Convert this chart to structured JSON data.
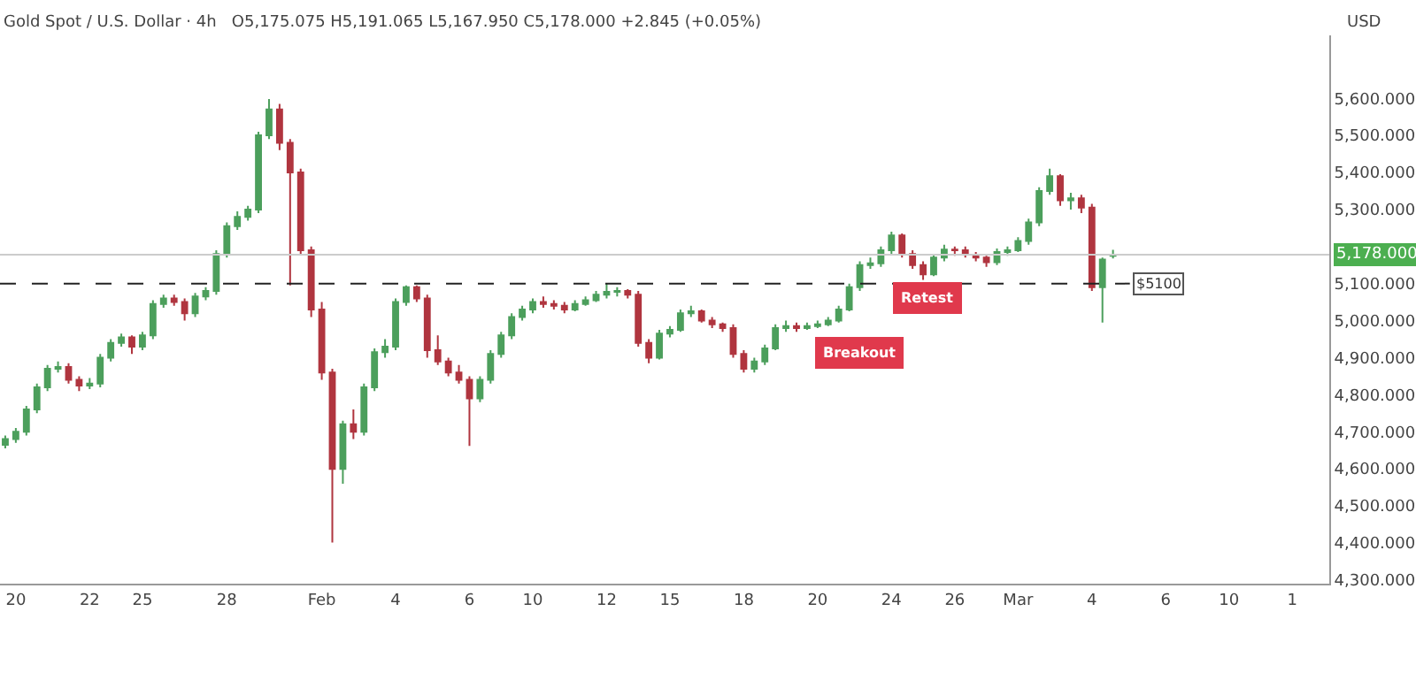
{
  "chart_data": {
    "type": "candlestick",
    "title": "Gold Spot / U.S. Dollar · 4h",
    "subtitle": "O5,175.075 H5,191.065 L5,167.950 C5,178.000 +2.845 (+0.05%)",
    "ylabel": "USD",
    "categories": [
      null,
      "20",
      null,
      null,
      null,
      null,
      null,
      null,
      "22",
      null,
      null,
      null,
      null,
      "25",
      null,
      null,
      null,
      null,
      null,
      null,
      null,
      "28",
      null,
      null,
      null,
      null,
      null,
      null,
      null,
      null,
      "Feb",
      null,
      null,
      null,
      null,
      null,
      null,
      "4",
      null,
      null,
      null,
      null,
      null,
      null,
      "6",
      null,
      null,
      null,
      null,
      null,
      "10",
      null,
      null,
      null,
      null,
      null,
      null,
      "12",
      null,
      null,
      null,
      null,
      null,
      "15",
      null,
      null,
      null,
      null,
      null,
      null,
      "18",
      null,
      null,
      null,
      null,
      null,
      null,
      "20",
      null,
      null,
      null,
      null,
      null,
      null,
      "24",
      null,
      null,
      null,
      null,
      null,
      "26",
      null,
      null,
      null,
      null,
      null,
      "Mar",
      null,
      null,
      null,
      null,
      null,
      null,
      "4",
      null,
      null,
      null,
      null,
      null,
      null,
      "6",
      null,
      null,
      null,
      null,
      null,
      "10",
      null,
      null,
      null,
      null,
      null,
      "1",
      null,
      null,
      null
    ],
    "ohlc": [
      [
        4665,
        4690,
        4655,
        4680
      ],
      [
        4680,
        4710,
        4670,
        4700
      ],
      [
        4700,
        4770,
        4690,
        4760
      ],
      [
        4760,
        4830,
        4750,
        4820
      ],
      [
        4820,
        4880,
        4810,
        4870
      ],
      [
        4870,
        4890,
        4860,
        4875
      ],
      [
        4875,
        4885,
        4830,
        4840
      ],
      [
        4840,
        4850,
        4810,
        4825
      ],
      [
        4825,
        4845,
        4815,
        4830
      ],
      [
        4830,
        4910,
        4820,
        4900
      ],
      [
        4900,
        4950,
        4890,
        4940
      ],
      [
        4940,
        4965,
        4930,
        4955
      ],
      [
        4955,
        4960,
        4910,
        4930
      ],
      [
        4930,
        4970,
        4920,
        4960
      ],
      [
        4960,
        5055,
        4950,
        5045
      ],
      [
        5045,
        5070,
        5035,
        5060
      ],
      [
        5060,
        5070,
        5040,
        5050
      ],
      [
        5050,
        5060,
        5000,
        5020
      ],
      [
        5020,
        5075,
        5010,
        5065
      ],
      [
        5065,
        5090,
        5055,
        5080
      ],
      [
        5080,
        5190,
        5070,
        5180
      ],
      [
        5180,
        5265,
        5170,
        5255
      ],
      [
        5255,
        5295,
        5245,
        5280
      ],
      [
        5280,
        5310,
        5270,
        5300
      ],
      [
        5300,
        5510,
        5290,
        5500
      ],
      [
        5500,
        5598,
        5490,
        5570
      ],
      [
        5570,
        5585,
        5460,
        5480
      ],
      [
        5480,
        5490,
        5095,
        5400
      ],
      [
        5400,
        5410,
        5180,
        5190
      ],
      [
        5190,
        5200,
        5010,
        5030
      ],
      [
        5030,
        5050,
        4840,
        4860
      ],
      [
        4860,
        4870,
        4401,
        4600
      ],
      [
        4600,
        4730,
        4560,
        4720
      ],
      [
        4720,
        4760,
        4680,
        4700
      ],
      [
        4700,
        4830,
        4690,
        4820
      ],
      [
        4820,
        4925,
        4810,
        4915
      ],
      [
        4915,
        4950,
        4900,
        4930
      ],
      [
        4930,
        5060,
        4920,
        5050
      ],
      [
        5050,
        5095,
        5040,
        5090
      ],
      [
        5090,
        5095,
        5050,
        5060
      ],
      [
        5060,
        5070,
        4900,
        4920
      ],
      [
        4920,
        4960,
        4880,
        4890
      ],
      [
        4890,
        4900,
        4850,
        4860
      ],
      [
        4860,
        4880,
        4830,
        4840
      ],
      [
        4840,
        4850,
        4662,
        4790
      ],
      [
        4790,
        4850,
        4780,
        4840
      ],
      [
        4840,
        4920,
        4830,
        4910
      ],
      [
        4910,
        4970,
        4900,
        4960
      ],
      [
        4960,
        5020,
        4950,
        5010
      ],
      [
        5010,
        5040,
        5000,
        5030
      ],
      [
        5030,
        5060,
        5020,
        5050
      ],
      [
        5050,
        5065,
        5035,
        5045
      ],
      [
        5045,
        5055,
        5030,
        5040
      ],
      [
        5040,
        5050,
        5020,
        5030
      ],
      [
        5030,
        5055,
        5025,
        5045
      ],
      [
        5045,
        5065,
        5040,
        5055
      ],
      [
        5055,
        5080,
        5050,
        5070
      ],
      [
        5070,
        5100,
        5060,
        5078
      ],
      [
        5078,
        5090,
        5065,
        5080
      ],
      [
        5080,
        5085,
        5060,
        5070
      ],
      [
        5070,
        5080,
        4930,
        4940
      ],
      [
        4940,
        4950,
        4885,
        4900
      ],
      [
        4900,
        4975,
        4895,
        4965
      ],
      [
        4965,
        4985,
        4955,
        4975
      ],
      [
        4975,
        5030,
        4970,
        5020
      ],
      [
        5020,
        5040,
        5010,
        5025
      ],
      [
        5025,
        5030,
        4995,
        5000
      ],
      [
        5000,
        5010,
        4980,
        4990
      ],
      [
        4990,
        4995,
        4970,
        4980
      ],
      [
        4980,
        4990,
        4900,
        4910
      ],
      [
        4910,
        4920,
        4860,
        4870
      ],
      [
        4870,
        4900,
        4860,
        4890
      ],
      [
        4890,
        4935,
        4880,
        4925
      ],
      [
        4925,
        4990,
        4920,
        4980
      ],
      [
        4980,
        5000,
        4970,
        4985
      ],
      [
        4985,
        4995,
        4970,
        4980
      ],
      [
        4980,
        4995,
        4975,
        4985
      ],
      [
        4985,
        5000,
        4980,
        4990
      ],
      [
        4990,
        5010,
        4985,
        5000
      ],
      [
        5000,
        5040,
        4995,
        5030
      ],
      [
        5030,
        5100,
        5025,
        5090
      ],
      [
        5090,
        5160,
        5080,
        5150
      ],
      [
        5150,
        5170,
        5140,
        5155
      ],
      [
        5155,
        5200,
        5145,
        5190
      ],
      [
        5190,
        5240,
        5180,
        5230
      ],
      [
        5230,
        5235,
        5170,
        5180
      ],
      [
        5180,
        5190,
        5140,
        5150
      ],
      [
        5150,
        5160,
        5110,
        5125
      ],
      [
        5125,
        5180,
        5120,
        5170
      ],
      [
        5170,
        5205,
        5160,
        5192
      ],
      [
        5192,
        5200,
        5175,
        5190
      ],
      [
        5190,
        5200,
        5170,
        5178
      ],
      [
        5178,
        5185,
        5160,
        5170
      ],
      [
        5170,
        5175,
        5145,
        5158
      ],
      [
        5158,
        5195,
        5150,
        5185
      ],
      [
        5185,
        5200,
        5175,
        5190
      ],
      [
        5190,
        5225,
        5185,
        5215
      ],
      [
        5215,
        5275,
        5205,
        5265
      ],
      [
        5265,
        5360,
        5255,
        5350
      ],
      [
        5350,
        5410,
        5340,
        5390
      ],
      [
        5390,
        5395,
        5310,
        5325
      ],
      [
        5325,
        5345,
        5300,
        5330
      ],
      [
        5330,
        5340,
        5290,
        5305
      ],
      [
        5305,
        5315,
        5080,
        5090
      ],
      [
        5090,
        5170,
        4995,
        5165
      ],
      [
        5175.075,
        5191.065,
        5167.95,
        5178
      ],
      null,
      null,
      null,
      null,
      null,
      null,
      null,
      null,
      null,
      null,
      null,
      null,
      null,
      null,
      null,
      null,
      null,
      null,
      null,
      null
    ],
    "colors": [
      "#4c9f5c",
      "#4c9f5c",
      "#4c9f5c",
      "#4c9f5c",
      "#4c9f5c",
      "#4c9f5c",
      "#b0353f",
      "#b0353f",
      "#4c9f5c",
      "#4c9f5c",
      "#4c9f5c",
      "#4c9f5c",
      "#b0353f",
      "#4c9f5c",
      "#4c9f5c",
      "#4c9f5c",
      "#b0353f",
      "#b0353f",
      "#4c9f5c",
      "#4c9f5c",
      "#4c9f5c",
      "#4c9f5c",
      "#4c9f5c",
      "#4c9f5c",
      "#4c9f5c",
      "#4c9f5c",
      "#b0353f",
      "#b0353f",
      "#b0353f",
      "#b0353f",
      "#b0353f",
      "#b0353f",
      "#4c9f5c",
      "#b0353f",
      "#4c9f5c",
      "#4c9f5c",
      "#4c9f5c",
      "#4c9f5c",
      "#4c9f5c",
      "#b0353f",
      "#b0353f",
      "#b0353f",
      "#b0353f",
      "#b0353f",
      "#b0353f",
      "#4c9f5c",
      "#4c9f5c",
      "#4c9f5c",
      "#4c9f5c",
      "#4c9f5c",
      "#4c9f5c",
      "#b0353f",
      "#b0353f",
      "#b0353f",
      "#4c9f5c",
      "#4c9f5c",
      "#4c9f5c",
      "#4c9f5c",
      "#4c9f5c",
      "#b0353f",
      "#b0353f",
      "#b0353f",
      "#4c9f5c",
      "#4c9f5c",
      "#4c9f5c",
      "#4c9f5c",
      "#b0353f",
      "#b0353f",
      "#b0353f",
      "#b0353f",
      "#b0353f",
      "#4c9f5c",
      "#4c9f5c",
      "#4c9f5c",
      "#4c9f5c",
      "#b0353f",
      "#4c9f5c",
      "#4c9f5c",
      "#4c9f5c",
      "#4c9f5c",
      "#4c9f5c",
      "#4c9f5c",
      "#4c9f5c",
      "#4c9f5c",
      "#4c9f5c",
      "#b0353f",
      "#b0353f",
      "#b0353f",
      "#4c9f5c",
      "#4c9f5c",
      "#b0353f",
      "#b0353f",
      "#b0353f",
      "#b0353f",
      "#4c9f5c",
      "#4c9f5c",
      "#4c9f5c",
      "#4c9f5c",
      "#4c9f5c",
      "#4c9f5c",
      "#b0353f",
      "#4c9f5c",
      "#b0353f",
      "#b0353f",
      "#4c9f5c",
      "#4c9f5c",
      null,
      null,
      null,
      null,
      null,
      null,
      null,
      null,
      null,
      null,
      null,
      null,
      null,
      null,
      null,
      null,
      null,
      null,
      null,
      null
    ],
    "ylim": [
      4290,
      5770
    ],
    "yticks": [
      {
        "value": 4300,
        "label": "4,300.000"
      },
      {
        "value": 4400,
        "label": "4,400.000"
      },
      {
        "value": 4500,
        "label": "4,500.000"
      },
      {
        "value": 4600,
        "label": "4,600.000"
      },
      {
        "value": 4700,
        "label": "4,700.000"
      },
      {
        "value": 4800,
        "label": "4,800.000"
      },
      {
        "value": 4900,
        "label": "4,900.000"
      },
      {
        "value": 5000,
        "label": "5,000.000"
      },
      {
        "value": 5100,
        "label": "5,100.000"
      },
      {
        "value": 5300,
        "label": "5,300.000"
      },
      {
        "value": 5400,
        "label": "5,400.000"
      },
      {
        "value": 5500,
        "label": "5,500.000"
      },
      {
        "value": 5600,
        "label": "5,600.000"
      }
    ],
    "ref_lines": [
      {
        "axis": "y",
        "value": 5100,
        "label": "$5100",
        "line_style": "dashed",
        "color": "#222222"
      },
      {
        "axis": "y",
        "value": 5178,
        "label": "5,178.000",
        "color": "#cccccc"
      }
    ],
    "annotations": [
      "Breakout",
      "Retest"
    ]
  }
}
